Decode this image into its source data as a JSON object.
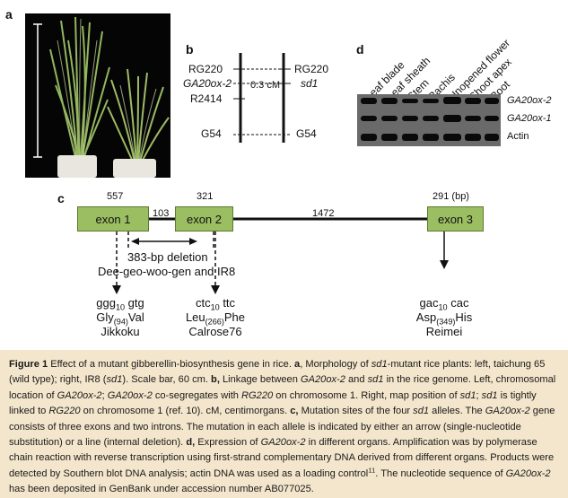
{
  "panels": {
    "a": "a",
    "b": "b",
    "c": "c",
    "d": "d"
  },
  "panel_b": {
    "left": {
      "rg220": "RG220",
      "ga20ox2": "GA20ox-2",
      "r2414": "R2414",
      "g54": "G54"
    },
    "distance": "0.3 cM",
    "right": {
      "rg220": "RG220",
      "sd1": "sd1",
      "g54": "G54"
    }
  },
  "panel_c": {
    "lengths": {
      "exon1": "557",
      "intron1": "103",
      "exon2": "321",
      "intron2": "1472",
      "exon3": "291 (bp)"
    },
    "exons": [
      "exon 1",
      "exon 2",
      "exon 3"
    ],
    "deletion_label": "383-bp deletion",
    "deletion_cultivars": "Dee-geo-woo-gen and IR8",
    "alleles": [
      {
        "codon_pre": "ggg",
        "codon_sub": "10",
        "codon_post": " gtg",
        "aa_pre": "Gly",
        "aa_sub": "(94)",
        "aa_post": "Val",
        "cultivar": "Jikkoku"
      },
      {
        "codon_pre": "ctc",
        "codon_sub": "10",
        "codon_post": " ttc",
        "aa_pre": "Leu",
        "aa_sub": "(266)",
        "aa_post": "Phe",
        "cultivar": "Calrose76"
      },
      {
        "codon_pre": "gac",
        "codon_sub": "10",
        "codon_post": " cac",
        "aa_pre": "Asp",
        "aa_sub": "(349)",
        "aa_post": "His",
        "cultivar": "Reimei"
      }
    ]
  },
  "panel_d": {
    "lanes": [
      "Leaf blade",
      "Leaf sheath",
      "Stem",
      "Rachis",
      "Unopened flower",
      "Shoot apex",
      "Root"
    ],
    "rows": [
      "GA20ox-2",
      "GA20ox-1",
      "Actin"
    ]
  },
  "caption": {
    "figure_label": "Figure 1",
    "title": "Effect of a mutant gibberellin-biosynthesis gene in rice.",
    "a_bold": "a",
    "a_text_1": ", Morphology of ",
    "a_sd1": "sd1",
    "a_text_2": "-mutant rice plants: left, taichung 65 (wild type); right, IR8 (",
    "a_sd1b": "sd1",
    "a_text_3": "). Scale bar, 60 cm. ",
    "b_bold": "b,",
    "b_text_1": " Linkage between ",
    "b_gene1": "GA20ox-2",
    "b_text_2": " and ",
    "b_gene2": "sd1",
    "b_text_3": " in the rice genome. Left, chromosomal location of ",
    "b_gene3": "GA20ox-2",
    "b_text_4": ";",
    "b_gene4": "GA20ox-2",
    "b_text_5": " co-segregates with ",
    "b_gene5": "RG220",
    "b_text_6": " on chromosome 1. Right, map position of ",
    "b_gene6": "sd1",
    "b_text_7": "; ",
    "b_gene7": "sd1",
    "b_text_8": " is tightly linked to ",
    "b_gene8": "RG220",
    "b_text_9": " on chromosome 1 (ref. 10). cM, centimorgans. ",
    "c_bold": "c,",
    "c_text_1": " Mutation sites of the four ",
    "c_gene1": "sd1",
    "c_text_2": " alleles. The ",
    "c_gene2": "GA20ox-2",
    "c_text_3": " gene consists of three exons and two introns. The mutation in each allele is indicated by either an arrow (single-nucleotide substitution) or a line (internal deletion). ",
    "d_bold": "d,",
    "d_text_1": " Expression of ",
    "d_gene1": "GA20ox-2",
    "d_text_2": " in different organs. Amplification was by polymerase chain reaction with reverse transcription using first-strand complementary DNA derived from different organs. Products were detected by Southern blot DNA analysis; actin DNA was used as a loading control",
    "d_ref": "11",
    "d_text_3": ". The nucleotide sequence of ",
    "d_gene2": "GA20ox-2",
    "d_text_4": " has been deposited in GenBank under accession number AB077025."
  }
}
